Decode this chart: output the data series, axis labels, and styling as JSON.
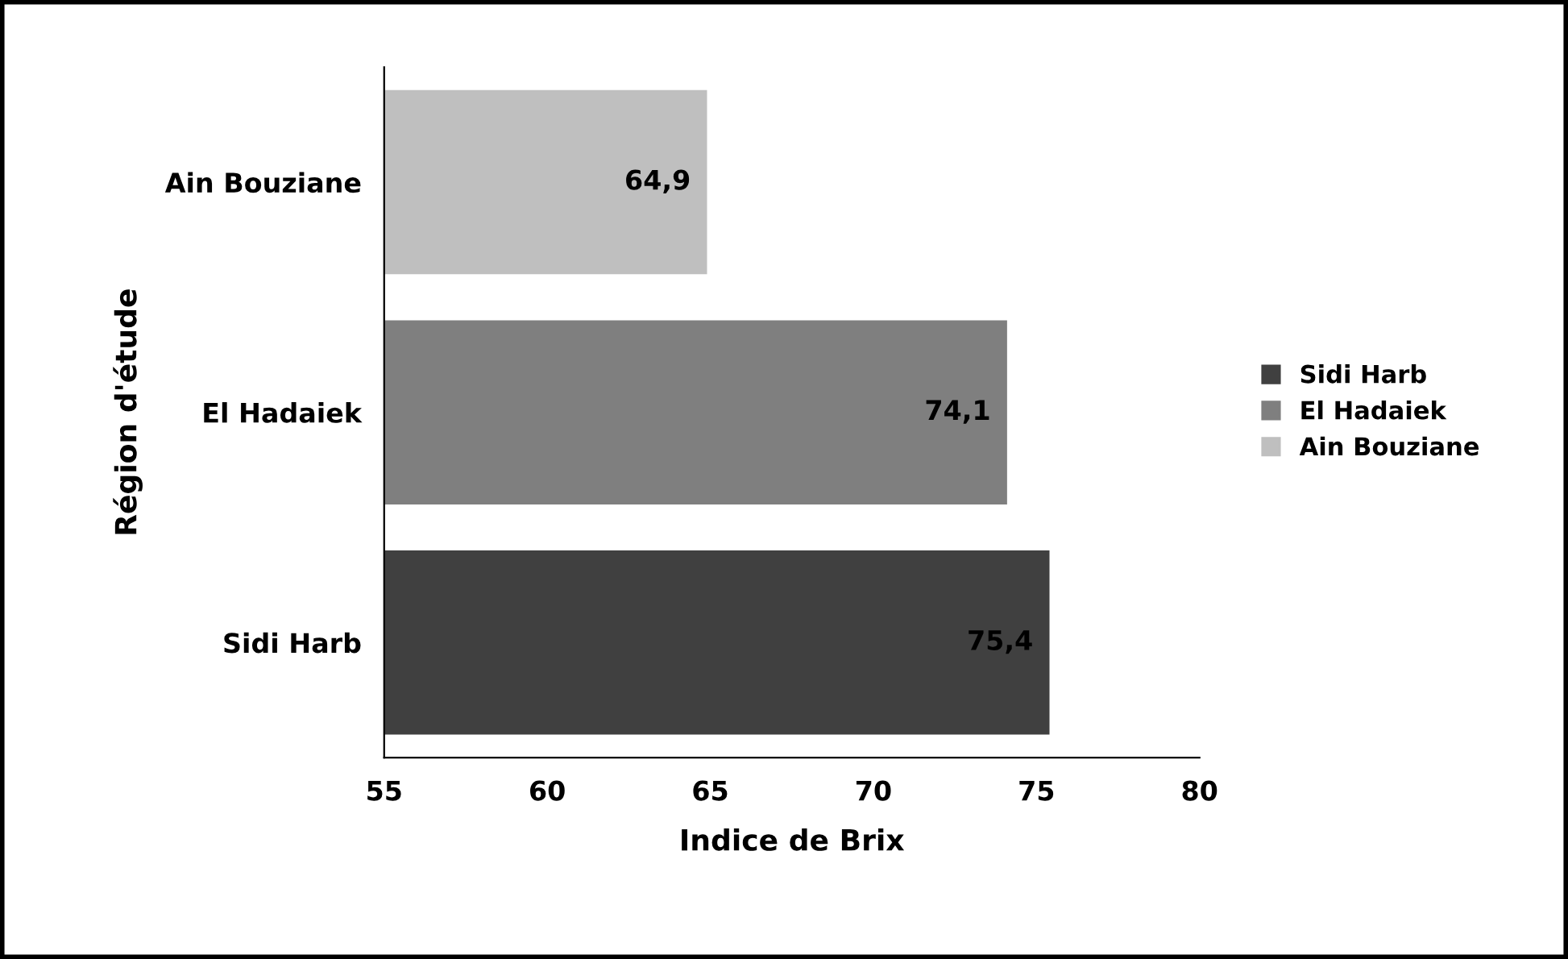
{
  "chart_data": {
    "type": "bar",
    "orientation": "horizontal",
    "xlabel": "Indice de Brix",
    "ylabel": "Région d'étude",
    "categories": [
      "Ain Bouziane",
      "El Hadaiek",
      "Sidi Harb"
    ],
    "series": [
      {
        "name": "Sidi Harb",
        "color": "#404040",
        "values": [
          null,
          null,
          75.4
        ],
        "value_labels": [
          null,
          null,
          "75,4"
        ]
      },
      {
        "name": "El Hadaiek",
        "color": "#7f7f7f",
        "values": [
          null,
          74.1,
          null
        ],
        "value_labels": [
          null,
          "74,1",
          null
        ]
      },
      {
        "name": "Ain Bouziane",
        "color": "#bfbfbf",
        "values": [
          64.9,
          null,
          null
        ],
        "value_labels": [
          "64,9",
          null,
          null
        ]
      }
    ],
    "xlim": [
      55,
      80
    ],
    "xticks": [
      55,
      60,
      65,
      70,
      75,
      80
    ],
    "legend": "right",
    "grid": false
  }
}
